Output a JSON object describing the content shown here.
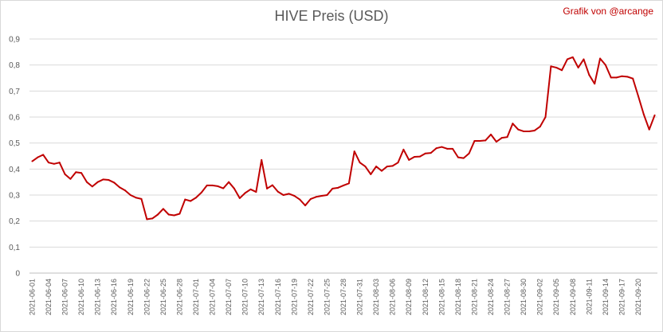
{
  "chart_data": {
    "type": "line",
    "title": "HIVE Preis (USD)",
    "credit": "Grafik von @arcange",
    "xlabel": "",
    "ylabel": "",
    "ylim": [
      0,
      0.9
    ],
    "grid": true,
    "line_color": "#c00000",
    "y_ticks": [
      "0",
      "0,1",
      "0,2",
      "0,3",
      "0,4",
      "0,5",
      "0,6",
      "0,7",
      "0,8",
      "0,9"
    ],
    "x_tick_labels": [
      "2021-06-01",
      "2021-06-04",
      "2021-06-07",
      "2021-06-10",
      "2021-06-13",
      "2021-06-16",
      "2021-06-19",
      "2021-06-22",
      "2021-06-25",
      "2021-06-28",
      "2021-07-01",
      "2021-07-04",
      "2021-07-07",
      "2021-07-10",
      "2021-07-13",
      "2021-07-16",
      "2021-07-19",
      "2021-07-22",
      "2021-07-25",
      "2021-07-28",
      "2021-07-31",
      "2021-08-03",
      "2021-08-06",
      "2021-08-09",
      "2021-08-12",
      "2021-08-15",
      "2021-08-18",
      "2021-08-21",
      "2021-08-24",
      "2021-08-27",
      "2021-08-30",
      "2021-09-02",
      "2021-09-05",
      "2021-09-08",
      "2021-09-11",
      "2021-09-14",
      "2021-09-17",
      "2021-09-20"
    ],
    "series": [
      {
        "start_date": "2021-06-01",
        "values": [
          0.43,
          0.445,
          0.455,
          0.425,
          0.42,
          0.425,
          0.38,
          0.362,
          0.388,
          0.385,
          0.35,
          0.333,
          0.35,
          0.36,
          0.358,
          0.348,
          0.33,
          0.318,
          0.3,
          0.29,
          0.285,
          0.207,
          0.21,
          0.225,
          0.247,
          0.225,
          0.222,
          0.228,
          0.283,
          0.277,
          0.29,
          0.31,
          0.337,
          0.337,
          0.334,
          0.326,
          0.35,
          0.325,
          0.288,
          0.308,
          0.322,
          0.312,
          0.435,
          0.325,
          0.338,
          0.313,
          0.3,
          0.305,
          0.297,
          0.283,
          0.26,
          0.285,
          0.293,
          0.297,
          0.3,
          0.325,
          0.328,
          0.337,
          0.345,
          0.468,
          0.425,
          0.41,
          0.38,
          0.41,
          0.393,
          0.41,
          0.412,
          0.425,
          0.475,
          0.435,
          0.447,
          0.448,
          0.46,
          0.462,
          0.48,
          0.485,
          0.478,
          0.478,
          0.445,
          0.442,
          0.46,
          0.508,
          0.508,
          0.51,
          0.533,
          0.505,
          0.52,
          0.523,
          0.575,
          0.552,
          0.545,
          0.545,
          0.548,
          0.563,
          0.6,
          0.795,
          0.79,
          0.78,
          0.822,
          0.83,
          0.79,
          0.822,
          0.762,
          0.728,
          0.825,
          0.8,
          0.752,
          0.752,
          0.757,
          0.755,
          0.748,
          0.68,
          0.61,
          0.552,
          0.607
        ]
      }
    ]
  }
}
